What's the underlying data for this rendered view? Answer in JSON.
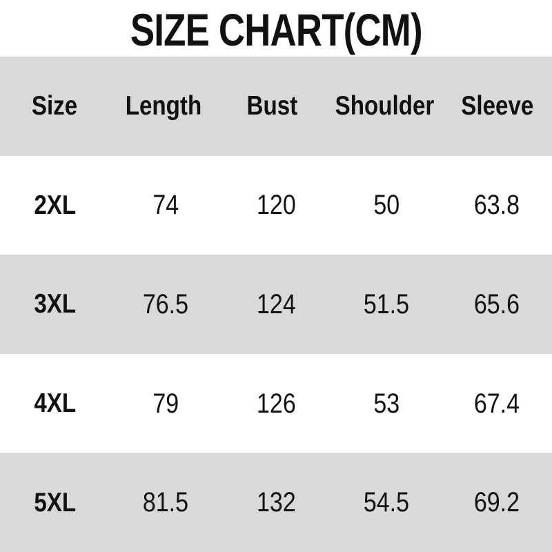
{
  "page_title": "SIZE CHART(CM)",
  "colors": {
    "background": "#ffffff",
    "band": "#d9d9d9",
    "text": "#111111"
  },
  "chart_data": {
    "type": "table",
    "title": "SIZE CHART(CM)",
    "unit": "cm",
    "columns": [
      "Size",
      "Length",
      "Bust",
      "Shoulder",
      "Sleeve"
    ],
    "rows": [
      [
        "2XL",
        "74",
        "120",
        "50",
        "63.8"
      ],
      [
        "3XL",
        "76.5",
        "124",
        "51.5",
        "65.6"
      ],
      [
        "4XL",
        "79",
        "126",
        "53",
        "67.4"
      ],
      [
        "5XL",
        "81.5",
        "132",
        "54.5",
        "69.2"
      ]
    ],
    "layout": {
      "banded_rows": true,
      "band_pattern": [
        "header-gray",
        "white",
        "gray",
        "white",
        "gray"
      ],
      "band_color": "#d9d9d9",
      "columns_equal_width": true,
      "text_align": "center"
    }
  }
}
